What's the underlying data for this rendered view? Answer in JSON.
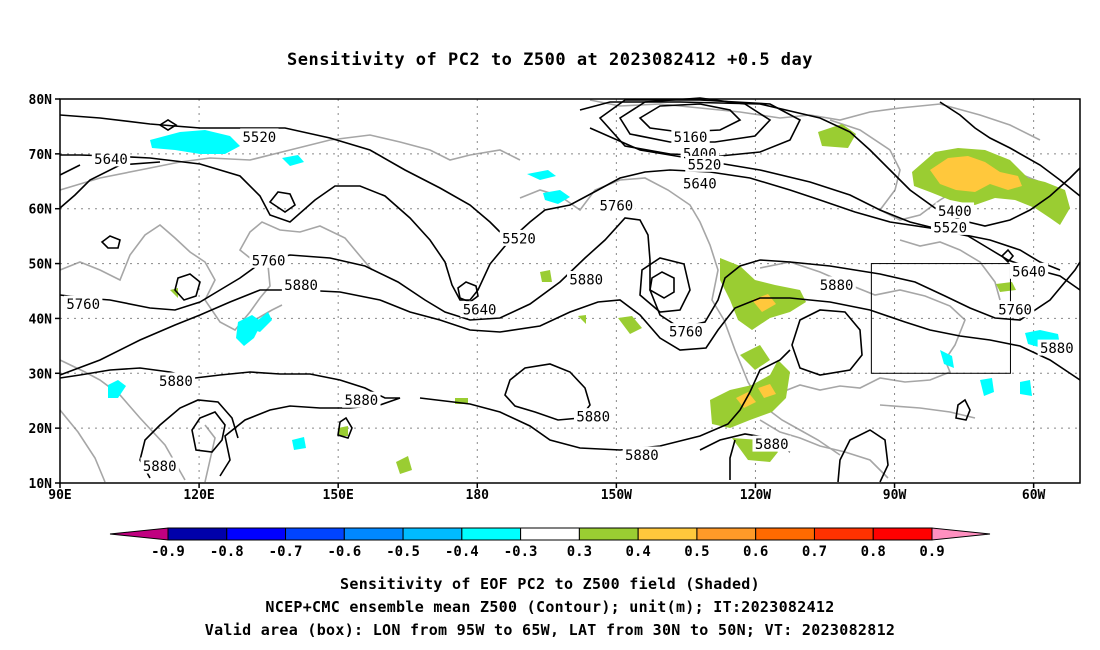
{
  "title": "Sensitivity of PC2 to Z500 at 2023082412 +0.5 day",
  "map": {
    "lat_ticks": [
      "80N",
      "70N",
      "60N",
      "50N",
      "40N",
      "30N",
      "20N",
      "10N"
    ],
    "lon_ticks": [
      "90E",
      "120E",
      "150E",
      "180",
      "150W",
      "120W",
      "90W",
      "60W"
    ],
    "extent": {
      "lon_min_east": 90,
      "lon_max_east": 310,
      "lat_min": 10,
      "lat_max": 80
    },
    "valid_box": {
      "lon_west": -95,
      "lon_east": -65,
      "lat_south": 30,
      "lat_north": 50
    },
    "contour_labels": [
      {
        "text": "5520",
        "lon": 133,
        "lat": 73
      },
      {
        "text": "5640",
        "lon": 101,
        "lat": 69
      },
      {
        "text": "5160",
        "lon": 226,
        "lat": 73
      },
      {
        "text": "5400",
        "lon": 228,
        "lat": 70
      },
      {
        "text": "5520",
        "lon": 229,
        "lat": 68
      },
      {
        "text": "5640",
        "lon": 228,
        "lat": 64.5
      },
      {
        "text": "5760",
        "lon": 210,
        "lat": 60.5
      },
      {
        "text": "5520",
        "lon": 189,
        "lat": 54.5
      },
      {
        "text": "5400",
        "lon": 283,
        "lat": 59.5
      },
      {
        "text": "5520",
        "lon": 282,
        "lat": 56.5
      },
      {
        "text": "5640",
        "lon": 299,
        "lat": 48.5
      },
      {
        "text": "5760",
        "lon": 135,
        "lat": 50.5
      },
      {
        "text": "5880",
        "lon": 142,
        "lat": 46
      },
      {
        "text": "5760",
        "lon": 95,
        "lat": 42.5
      },
      {
        "text": "5640",
        "lon": 180.5,
        "lat": 41.5
      },
      {
        "text": "5880",
        "lon": 203.5,
        "lat": 47
      },
      {
        "text": "5760",
        "lon": 225,
        "lat": 37.5
      },
      {
        "text": "5880",
        "lon": 257.5,
        "lat": 46
      },
      {
        "text": "5760",
        "lon": 296,
        "lat": 41.5
      },
      {
        "text": "5880",
        "lon": 305,
        "lat": 34.5
      },
      {
        "text": "5880",
        "lon": 115,
        "lat": 28.5
      },
      {
        "text": "5880",
        "lon": 155,
        "lat": 25
      },
      {
        "text": "5880",
        "lon": 205,
        "lat": 22
      },
      {
        "text": "5880",
        "lon": 215.5,
        "lat": 15
      },
      {
        "text": "5880",
        "lon": 243.5,
        "lat": 17
      },
      {
        "text": "5880",
        "lon": 111.5,
        "lat": 13
      }
    ]
  },
  "colorbar": {
    "labels": [
      "-0.9",
      "-0.8",
      "-0.7",
      "-0.6",
      "-0.5",
      "-0.4",
      "-0.3",
      "0.3",
      "0.4",
      "0.5",
      "0.6",
      "0.7",
      "0.8",
      "0.9"
    ],
    "colors": [
      "#c00080",
      "#0000aa",
      "#0000ff",
      "#0044ff",
      "#0088ff",
      "#00bbff",
      "#00ffff",
      "#ffffff",
      "#9acd32",
      "#ffc83c",
      "#ff9a28",
      "#ff6a00",
      "#ff3200",
      "#ff0000",
      "#ff90c0"
    ]
  },
  "captions": {
    "line1": "Sensitivity of EOF PC2 to Z500 field (Shaded)",
    "line2": "NCEP+CMC ensemble mean Z500 (Contour); unit(m); IT:2023082412",
    "line3": "Valid area (box): LON from 95W to 65W, LAT from 30N to 50N; VT: 2023082812"
  }
}
